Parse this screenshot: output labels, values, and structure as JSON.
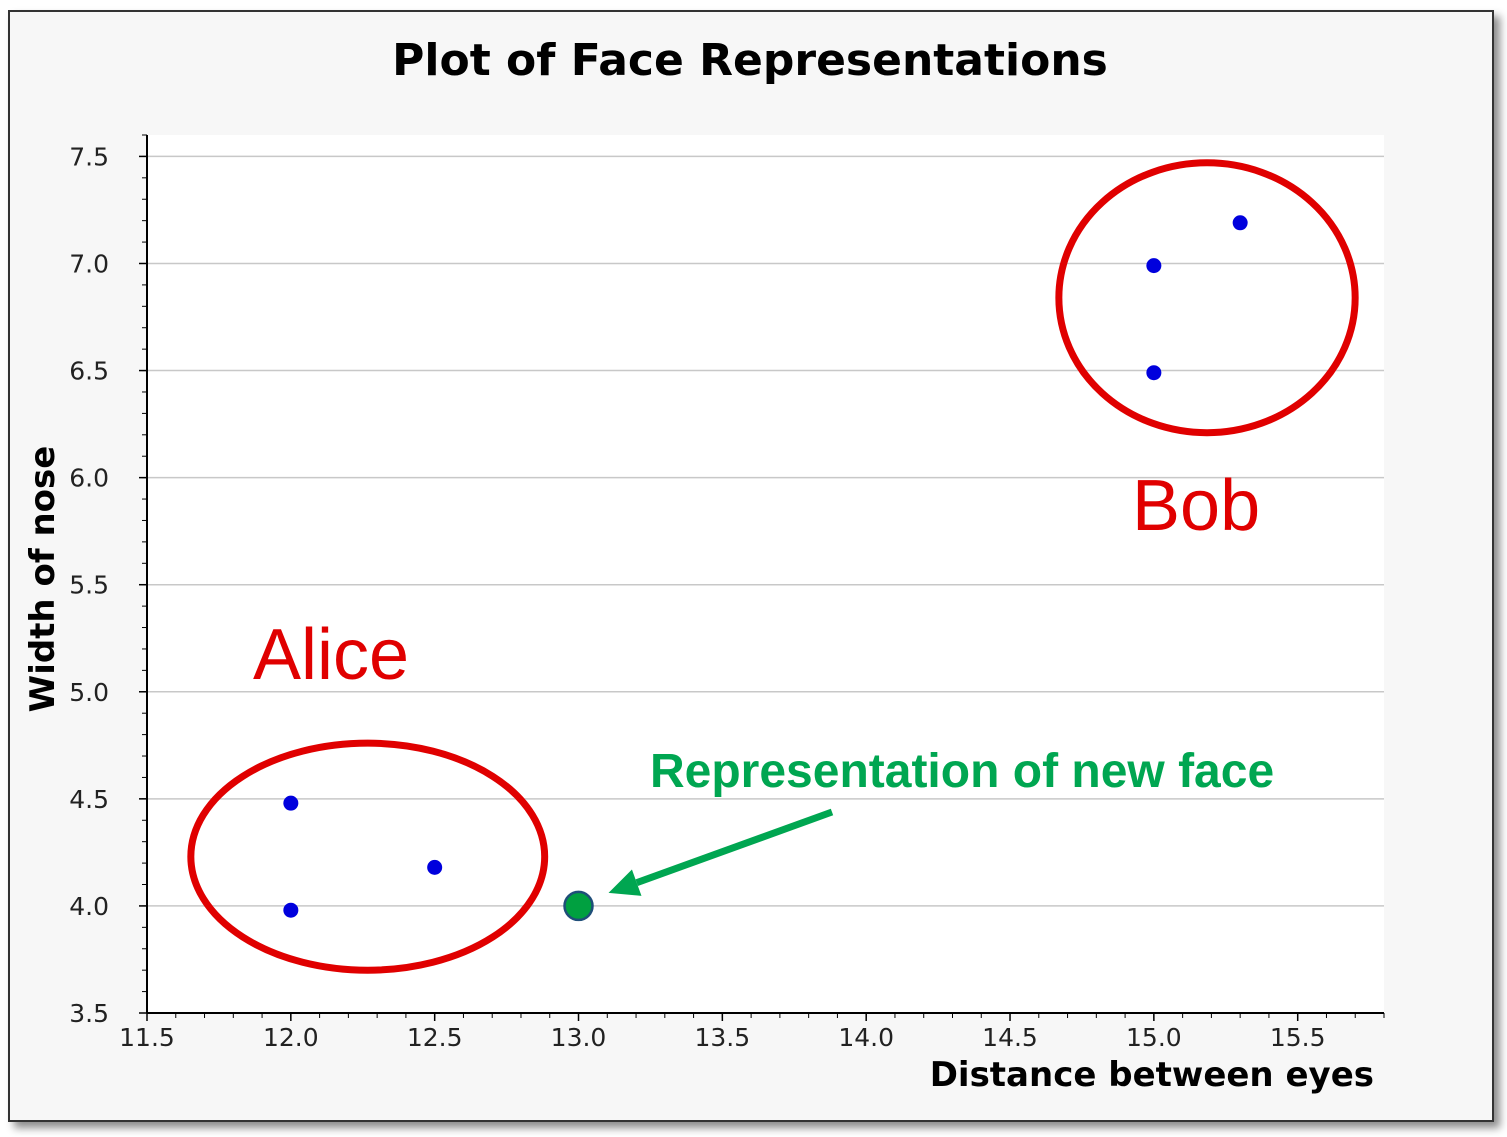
{
  "chart_data": {
    "type": "scatter",
    "title": "Plot of Face Representations",
    "xlabel": "Distance between eyes",
    "ylabel": "Width of nose",
    "xlim": [
      11.5,
      15.8
    ],
    "ylim": [
      3.5,
      7.6
    ],
    "xticks": [
      "11.5",
      "12.0",
      "12.5",
      "13.0",
      "13.5",
      "14.0",
      "14.5",
      "15.0",
      "15.5"
    ],
    "yticks": [
      "3.5",
      "4.0",
      "4.5",
      "5.0",
      "5.5",
      "6.0",
      "6.5",
      "7.0",
      "7.5"
    ],
    "grid": "horizontal",
    "series": [
      {
        "name": "Alice",
        "color": "#0000dd",
        "points": [
          {
            "x": 12.0,
            "y": 4.48
          },
          {
            "x": 12.0,
            "y": 3.98
          },
          {
            "x": 12.5,
            "y": 4.18
          }
        ]
      },
      {
        "name": "Bob",
        "color": "#0000dd",
        "points": [
          {
            "x": 15.0,
            "y": 6.99
          },
          {
            "x": 15.0,
            "y": 6.49
          },
          {
            "x": 15.3,
            "y": 7.19
          }
        ]
      }
    ],
    "new_point": {
      "x": 13.0,
      "y": 4.0,
      "color": "#00a040"
    },
    "annotation": "Representation of new face",
    "annotation_color": "#00a651",
    "cluster_color": "#e00000"
  }
}
